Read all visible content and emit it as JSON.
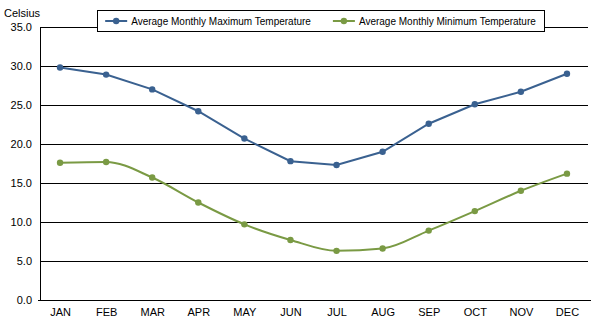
{
  "chart_data": {
    "type": "line",
    "y_label": "Celsius",
    "categories": [
      "JAN",
      "FEB",
      "MAR",
      "APR",
      "MAY",
      "JUN",
      "JUL",
      "AUG",
      "SEP",
      "OCT",
      "NOV",
      "DEC"
    ],
    "series": [
      {
        "name": "Average Monthly Maximum Temperature",
        "color": "#3a6190",
        "marker": "circle",
        "line_style": "solid",
        "values": [
          29.8,
          28.9,
          27.0,
          24.2,
          20.7,
          17.8,
          17.3,
          19.0,
          22.6,
          25.1,
          26.7,
          29.0
        ]
      },
      {
        "name": "Average Monthly Minimum Temperature",
        "color": "#7a9a44",
        "marker": "circle",
        "line_style": "smooth",
        "values": [
          17.6,
          17.7,
          15.7,
          12.5,
          9.7,
          7.7,
          6.3,
          6.6,
          8.9,
          11.4,
          14.0,
          16.2
        ]
      }
    ],
    "ylim": [
      0,
      35
    ],
    "yticks": [
      {
        "value": 0,
        "label": "0.0"
      },
      {
        "value": 5,
        "label": "5.0"
      },
      {
        "value": 10,
        "label": "10.0"
      },
      {
        "value": 15,
        "label": "15.0"
      },
      {
        "value": 20,
        "label": "20.0"
      },
      {
        "value": 25,
        "label": "25.0"
      },
      {
        "value": 30,
        "label": "30.0"
      },
      {
        "value": 35,
        "label": "35.0"
      }
    ],
    "grid": true,
    "legend": "top"
  }
}
